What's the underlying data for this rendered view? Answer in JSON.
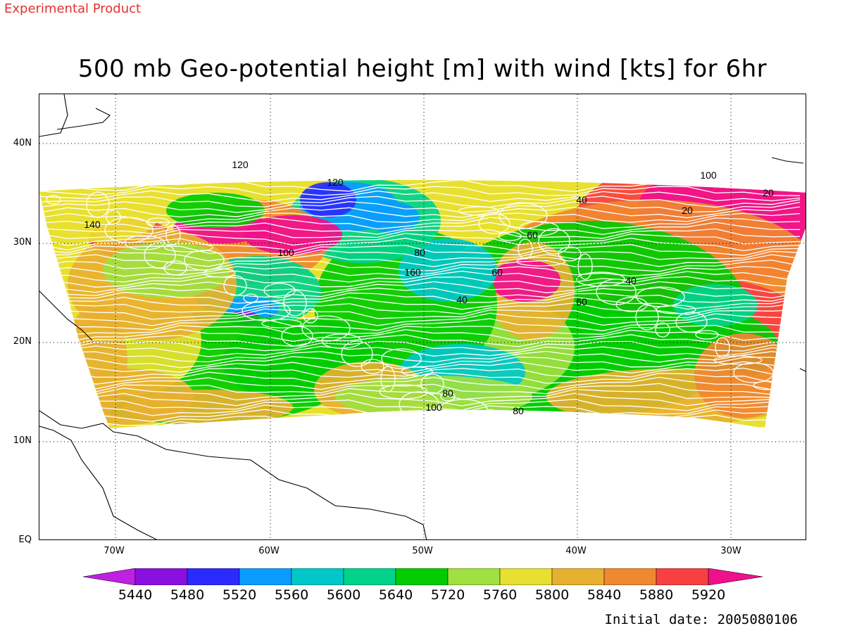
{
  "header": {
    "experimental_label": "Experimental Product",
    "title": "500 mb Geo-potential height [m] with wind [kts] for 6hr"
  },
  "map": {
    "lon_labels": [
      "70W",
      "60W",
      "50W",
      "40W",
      "30W"
    ],
    "lat_labels": [
      "40N",
      "30N",
      "20N",
      "10N",
      "EQ"
    ],
    "wind_speed_labels": [
      "20",
      "40",
      "60",
      "80",
      "100",
      "120",
      "140",
      "160",
      "40",
      "60",
      "80",
      "100",
      "120",
      "20",
      "40",
      "60",
      "80",
      "100"
    ],
    "colors": {
      "land_outline": "#000000",
      "grid": "#000000",
      "wind_contours": "#ffffff"
    }
  },
  "colorbar": {
    "labels": [
      "5440",
      "5480",
      "5520",
      "5560",
      "5600",
      "5640",
      "5720",
      "5760",
      "5800",
      "5840",
      "5880",
      "5920"
    ],
    "colors": [
      "#c020e0",
      "#8a10e0",
      "#2b2bff",
      "#0a9cff",
      "#00c8c8",
      "#00d28a",
      "#00cc00",
      "#a0e040",
      "#e8e030",
      "#e8b030",
      "#f08830",
      "#f84040",
      "#f0108c"
    ]
  },
  "footer": {
    "initial_date": "Initial date: 2005080106"
  }
}
